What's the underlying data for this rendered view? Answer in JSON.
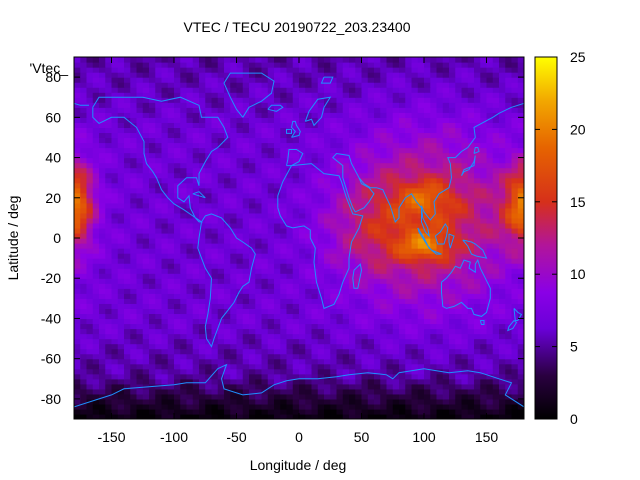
{
  "chart_data": {
    "type": "heatmap",
    "title": "VTEC / TECU 20190722_203.23400",
    "xlabel": "Longitude / deg",
    "ylabel": "Latitude / deg",
    "xlim": [
      -180,
      180
    ],
    "ylim": [
      -90,
      90
    ],
    "x_ticks": [
      -150,
      -100,
      -50,
      0,
      50,
      100,
      150
    ],
    "y_ticks": [
      -80,
      -60,
      -40,
      -20,
      0,
      20,
      40,
      60,
      80
    ],
    "x_tick_labels": [
      "-150",
      "-100",
      "-50",
      "0",
      "50",
      "100",
      "150"
    ],
    "y_tick_labels": [
      "-80",
      "-60",
      "-40",
      "-20",
      "0",
      "20",
      "40",
      "60",
      "80"
    ],
    "colorbar": {
      "range": [
        0,
        25
      ],
      "ticks": [
        0,
        5,
        10,
        15,
        20,
        25
      ],
      "tick_labels": [
        "0",
        "5",
        "10",
        "15",
        "20",
        "25"
      ],
      "colormap": "black-purple-red-yellow (gnuplot pm3d)"
    },
    "legend_key": "'Vtec_",
    "grid": false,
    "overlay": "coastlines",
    "data_units": "TECU",
    "value_peaks": [
      {
        "lon": 100,
        "lat": -5,
        "value": 24
      },
      {
        "lon": 100,
        "lat": 20,
        "value": 19
      },
      {
        "lon": -175,
        "lat": 20,
        "value": 16
      }
    ]
  }
}
